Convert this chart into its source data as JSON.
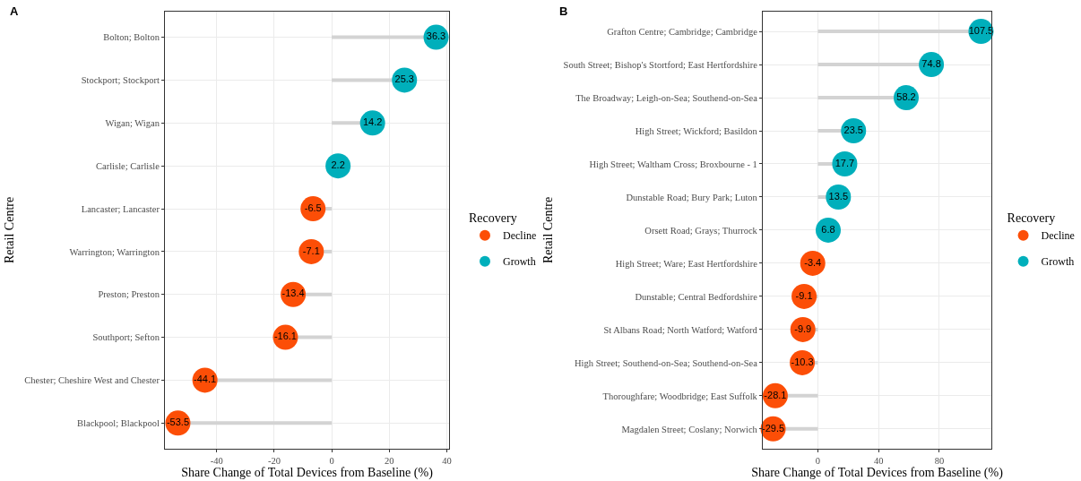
{
  "chart_data": [
    {
      "type": "lollipop",
      "title": "A",
      "xlabel": "Share Change of Total Devices from Baseline (%)",
      "ylabel": "Retail Centre",
      "legend_title": "Recovery",
      "categories": [
        "Bolton; Bolton",
        "Stockport; Stockport",
        "Wigan; Wigan",
        "Carlisle; Carlisle",
        "Lancaster; Lancaster",
        "Warrington; Warrington",
        "Preston; Preston",
        "Southport; Sefton",
        "Chester; Cheshire West and Chester",
        "Blackpool; Blackpool"
      ],
      "series": [
        {
          "name": "Decline",
          "color": "#fc4e07",
          "values": [
            null,
            null,
            null,
            null,
            -6.5,
            -7.1,
            -13.4,
            -16.1,
            -44.1,
            -53.5
          ]
        },
        {
          "name": "Growth",
          "color": "#00afbb",
          "values": [
            36.3,
            25.3,
            14.2,
            2.2,
            null,
            null,
            null,
            null,
            null,
            null
          ]
        }
      ],
      "xlim": [
        -58.0,
        40.8
      ],
      "xticks": [
        -40,
        -20,
        0,
        20,
        40
      ],
      "grid": true,
      "legend": "right",
      "marker": "circle",
      "data_labels": true,
      "orientation": "horizontal"
    },
    {
      "type": "lollipop",
      "title": "B",
      "xlabel": "Share Change of Total Devices from Baseline (%)",
      "ylabel": "Retail Centre",
      "legend_title": "Recovery",
      "categories": [
        "Grafton Centre; Cambridge; Cambridge",
        "South Street; Bishop's Stortford; East Hertfordshire",
        "The Broadway; Leigh-on-Sea; Southend-on-Sea",
        "High Street; Wickford; Basildon",
        "High Street; Waltham Cross; Broxbourne - 1",
        "Dunstable Road; Bury Park; Luton",
        "Orsett Road; Grays; Thurrock",
        "High Street; Ware; East Hertfordshire",
        "Dunstable; Central Bedfordshire",
        "St Albans Road; North Watford; Watford",
        "High Street; Southend-on-Sea; Southend-on-Sea",
        "Thoroughfare; Woodbridge; East Suffolk",
        "Magdalen Street; Coslany; Norwich"
      ],
      "series": [
        {
          "name": "Decline",
          "color": "#fc4e07",
          "values": [
            null,
            null,
            null,
            null,
            null,
            null,
            null,
            -3.4,
            -9.1,
            -9.9,
            -10.3,
            -28.1,
            -29.5
          ]
        },
        {
          "name": "Growth",
          "color": "#00afbb",
          "values": [
            107.5,
            74.8,
            58.2,
            23.5,
            17.7,
            13.5,
            6.8,
            null,
            null,
            null,
            null,
            null,
            null
          ]
        }
      ],
      "xlim": [
        -36.35,
        114.35
      ],
      "xticks": [
        0,
        40,
        80
      ],
      "grid": true,
      "legend": "right",
      "marker": "circle",
      "data_labels": true,
      "orientation": "horizontal"
    }
  ]
}
